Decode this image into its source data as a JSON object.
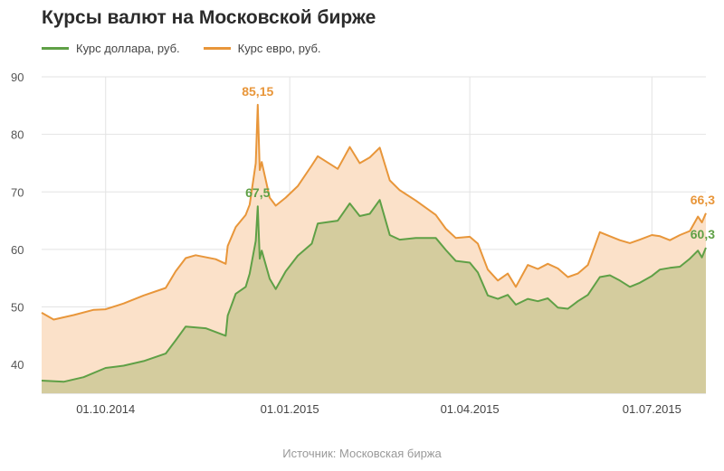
{
  "title": "Курсы валют на Московской бирже",
  "source": "Источник: Московская биржа",
  "chart_data": {
    "type": "area",
    "xlabel": "",
    "ylabel": "",
    "ylim": [
      35,
      90
    ],
    "xlim": [
      "2014-08-30",
      "2015-07-28"
    ],
    "yticks": [
      "40",
      "50",
      "60",
      "70",
      "80",
      "90"
    ],
    "xticks": [
      {
        "date": "2014-10-01",
        "label": "01.10.2014"
      },
      {
        "date": "2015-01-01",
        "label": "01.01.2015"
      },
      {
        "date": "2015-04-01",
        "label": "01.04.2015"
      },
      {
        "date": "2015-07-01",
        "label": "01.07.2015"
      }
    ],
    "grid": true,
    "legend_position": "top-left",
    "series": [
      {
        "name": "Курс доллара, руб.",
        "color": "#5fa046",
        "fill": "#d4cc9e",
        "points": [
          [
            "2014-08-30",
            37.2
          ],
          [
            "2014-09-10",
            37.0
          ],
          [
            "2014-09-20",
            37.8
          ],
          [
            "2014-10-01",
            39.4
          ],
          [
            "2014-10-10",
            39.8
          ],
          [
            "2014-10-20",
            40.6
          ],
          [
            "2014-10-31",
            41.9
          ],
          [
            "2014-11-05",
            44.2
          ],
          [
            "2014-11-10",
            46.6
          ],
          [
            "2014-11-20",
            46.3
          ],
          [
            "2014-11-30",
            45.0
          ],
          [
            "2014-12-01",
            48.5
          ],
          [
            "2014-12-05",
            52.3
          ],
          [
            "2014-12-10",
            53.5
          ],
          [
            "2014-12-12",
            55.8
          ],
          [
            "2014-12-15",
            61.5
          ],
          [
            "2014-12-16",
            67.5
          ],
          [
            "2014-12-17",
            58.4
          ],
          [
            "2014-12-18",
            59.8
          ],
          [
            "2014-12-22",
            54.9
          ],
          [
            "2014-12-25",
            53.1
          ],
          [
            "2014-12-30",
            56.2
          ],
          [
            "2015-01-05",
            58.9
          ],
          [
            "2015-01-12",
            61.0
          ],
          [
            "2015-01-15",
            64.5
          ],
          [
            "2015-01-25",
            65.0
          ],
          [
            "2015-01-31",
            68.0
          ],
          [
            "2015-02-05",
            65.8
          ],
          [
            "2015-02-10",
            66.2
          ],
          [
            "2015-02-15",
            68.6
          ],
          [
            "2015-02-20",
            62.5
          ],
          [
            "2015-02-25",
            61.7
          ],
          [
            "2015-03-05",
            62.0
          ],
          [
            "2015-03-15",
            62.0
          ],
          [
            "2015-03-20",
            59.9
          ],
          [
            "2015-03-25",
            58.0
          ],
          [
            "2015-04-01",
            57.7
          ],
          [
            "2015-04-05",
            56.0
          ],
          [
            "2015-04-10",
            52.0
          ],
          [
            "2015-04-15",
            51.4
          ],
          [
            "2015-04-20",
            52.1
          ],
          [
            "2015-04-24",
            50.4
          ],
          [
            "2015-04-30",
            51.4
          ],
          [
            "2015-05-05",
            51.0
          ],
          [
            "2015-05-10",
            51.5
          ],
          [
            "2015-05-15",
            49.9
          ],
          [
            "2015-05-20",
            49.7
          ],
          [
            "2015-05-25",
            51.0
          ],
          [
            "2015-05-30",
            52.1
          ],
          [
            "2015-06-05",
            55.2
          ],
          [
            "2015-06-10",
            55.5
          ],
          [
            "2015-06-15",
            54.6
          ],
          [
            "2015-06-20",
            53.5
          ],
          [
            "2015-06-25",
            54.2
          ],
          [
            "2015-07-01",
            55.4
          ],
          [
            "2015-07-05",
            56.5
          ],
          [
            "2015-07-10",
            56.8
          ],
          [
            "2015-07-15",
            57.0
          ],
          [
            "2015-07-20",
            58.4
          ],
          [
            "2015-07-24",
            59.8
          ],
          [
            "2015-07-26",
            58.6
          ],
          [
            "2015-07-28",
            60.3
          ]
        ]
      },
      {
        "name": "Курс евро, руб.",
        "color": "#e8963a",
        "fill": "#fbe1c9",
        "points": [
          [
            "2014-08-30",
            49.0
          ],
          [
            "2014-09-05",
            47.8
          ],
          [
            "2014-09-15",
            48.6
          ],
          [
            "2014-09-25",
            49.5
          ],
          [
            "2014-10-01",
            49.6
          ],
          [
            "2014-10-10",
            50.6
          ],
          [
            "2014-10-20",
            52.0
          ],
          [
            "2014-10-31",
            53.3
          ],
          [
            "2014-11-05",
            56.2
          ],
          [
            "2014-11-10",
            58.5
          ],
          [
            "2014-11-15",
            59.0
          ],
          [
            "2014-11-25",
            58.3
          ],
          [
            "2014-11-30",
            57.5
          ],
          [
            "2014-12-01",
            60.6
          ],
          [
            "2014-12-05",
            63.9
          ],
          [
            "2014-12-10",
            66.0
          ],
          [
            "2014-12-12",
            67.8
          ],
          [
            "2014-12-15",
            75.0
          ],
          [
            "2014-12-16",
            85.15
          ],
          [
            "2014-12-17",
            73.8
          ],
          [
            "2014-12-18",
            75.2
          ],
          [
            "2014-12-22",
            69.0
          ],
          [
            "2014-12-25",
            67.6
          ],
          [
            "2014-12-30",
            69.0
          ],
          [
            "2015-01-05",
            71.0
          ],
          [
            "2015-01-12",
            74.6
          ],
          [
            "2015-01-15",
            76.2
          ],
          [
            "2015-01-25",
            74.0
          ],
          [
            "2015-01-31",
            77.8
          ],
          [
            "2015-02-05",
            75.0
          ],
          [
            "2015-02-10",
            76.0
          ],
          [
            "2015-02-15",
            77.7
          ],
          [
            "2015-02-20",
            72.0
          ],
          [
            "2015-02-25",
            70.3
          ],
          [
            "2015-03-05",
            68.5
          ],
          [
            "2015-03-15",
            66.0
          ],
          [
            "2015-03-20",
            63.6
          ],
          [
            "2015-03-25",
            62.0
          ],
          [
            "2015-04-01",
            62.2
          ],
          [
            "2015-04-05",
            61.0
          ],
          [
            "2015-04-10",
            56.5
          ],
          [
            "2015-04-15",
            54.6
          ],
          [
            "2015-04-20",
            55.8
          ],
          [
            "2015-04-24",
            53.5
          ],
          [
            "2015-04-30",
            57.3
          ],
          [
            "2015-05-05",
            56.6
          ],
          [
            "2015-05-10",
            57.5
          ],
          [
            "2015-05-15",
            56.7
          ],
          [
            "2015-05-20",
            55.2
          ],
          [
            "2015-05-25",
            55.8
          ],
          [
            "2015-05-30",
            57.3
          ],
          [
            "2015-06-05",
            63.0
          ],
          [
            "2015-06-10",
            62.3
          ],
          [
            "2015-06-15",
            61.6
          ],
          [
            "2015-06-20",
            61.1
          ],
          [
            "2015-06-25",
            61.7
          ],
          [
            "2015-07-01",
            62.5
          ],
          [
            "2015-07-05",
            62.3
          ],
          [
            "2015-07-10",
            61.6
          ],
          [
            "2015-07-15",
            62.5
          ],
          [
            "2015-07-20",
            63.2
          ],
          [
            "2015-07-24",
            65.7
          ],
          [
            "2015-07-26",
            64.7
          ],
          [
            "2015-07-28",
            66.3
          ]
        ]
      }
    ],
    "annotations": [
      {
        "label": "85,15",
        "date": "2014-12-16",
        "value": 85.15,
        "series": 1,
        "anchor": "above"
      },
      {
        "label": "67,5",
        "date": "2014-12-16",
        "value": 67.5,
        "series": 0,
        "anchor": "above"
      },
      {
        "label": "66,3",
        "date": "2015-07-28",
        "value": 66.3,
        "series": 1,
        "anchor": "above-left"
      },
      {
        "label": "60,3",
        "date": "2015-07-28",
        "value": 60.3,
        "series": 0,
        "anchor": "above-left"
      }
    ]
  }
}
